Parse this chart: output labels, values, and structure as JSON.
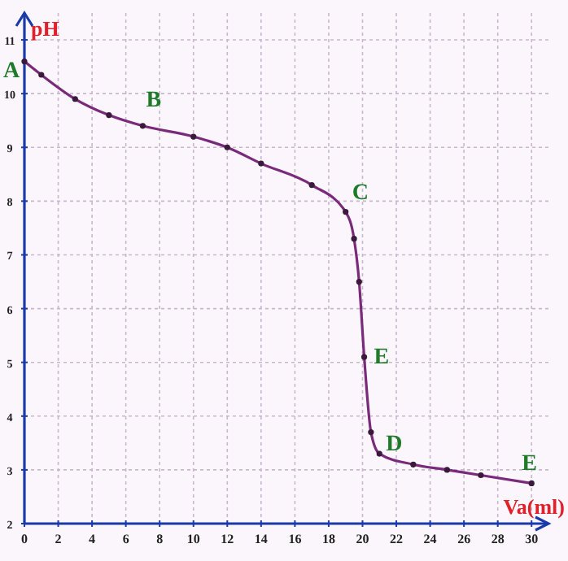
{
  "chart_data": {
    "type": "line",
    "xlabel": "Va(ml)",
    "ylabel": "pH",
    "x": [
      0,
      1,
      3,
      5,
      7,
      10,
      12,
      14,
      17,
      19,
      19.5,
      19.8,
      20.1,
      20.5,
      21,
      23,
      25,
      27,
      30
    ],
    "series": [
      {
        "color": "#7a2a7a",
        "values": [
          10.6,
          10.35,
          9.9,
          9.6,
          9.4,
          9.2,
          9.0,
          8.7,
          8.3,
          7.8,
          7.3,
          6.5,
          5.1,
          3.7,
          3.3,
          3.1,
          3.0,
          2.9,
          2.75
        ]
      }
    ],
    "xlim": [
      0,
      31
    ],
    "ylim": [
      2,
      11.5
    ],
    "xticks": [
      0,
      2,
      4,
      6,
      8,
      10,
      12,
      14,
      16,
      18,
      20,
      22,
      24,
      26,
      28,
      30
    ],
    "yticks": [
      2,
      3,
      4,
      5,
      6,
      7,
      8,
      9,
      10,
      11
    ],
    "grid": true,
    "marker": "circle",
    "line_style": "solid",
    "annotations": [
      {
        "text": "A",
        "x": 0,
        "y": 10.6
      },
      {
        "text": "B",
        "x": 7,
        "y": 9.4
      },
      {
        "text": "C",
        "x": 19,
        "y": 7.8
      },
      {
        "text": "E",
        "x": 20.1,
        "y": 5.1
      },
      {
        "text": "D",
        "x": 21,
        "y": 3.3
      },
      {
        "text": "E",
        "x": 30,
        "y": 2.75
      }
    ]
  }
}
